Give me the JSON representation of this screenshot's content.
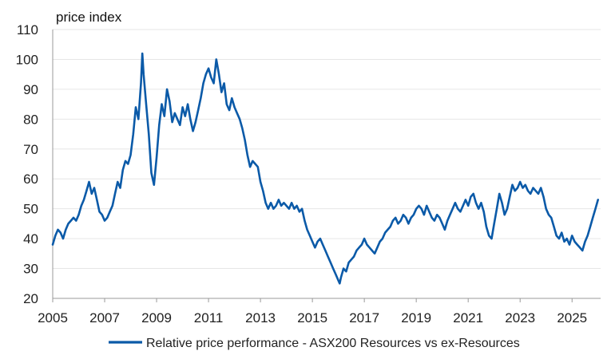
{
  "chart_data": {
    "type": "line",
    "title": "",
    "ylabel": "price index",
    "xlabel": "",
    "ylim": [
      20,
      110
    ],
    "xlim": [
      2005,
      2026.1
    ],
    "y_ticks": [
      20,
      30,
      40,
      50,
      60,
      70,
      80,
      90,
      100,
      110
    ],
    "x_ticks": [
      2005,
      2007,
      2009,
      2011,
      2013,
      2015,
      2017,
      2019,
      2021,
      2023,
      2025
    ],
    "grid": "horizontal",
    "legend_position": "bottom",
    "series": [
      {
        "name": "Relative price performance - ASX200 Resources vs ex-Resources",
        "color": "#0b5aa8",
        "points": [
          [
            2005.0,
            38
          ],
          [
            2005.1,
            41
          ],
          [
            2005.2,
            43
          ],
          [
            2005.3,
            42
          ],
          [
            2005.4,
            40
          ],
          [
            2005.5,
            43
          ],
          [
            2005.6,
            45
          ],
          [
            2005.7,
            46
          ],
          [
            2005.8,
            47
          ],
          [
            2005.9,
            46
          ],
          [
            2006.0,
            48
          ],
          [
            2006.1,
            51
          ],
          [
            2006.2,
            53
          ],
          [
            2006.3,
            56
          ],
          [
            2006.4,
            59
          ],
          [
            2006.5,
            55
          ],
          [
            2006.6,
            57
          ],
          [
            2006.7,
            53
          ],
          [
            2006.8,
            49
          ],
          [
            2006.9,
            48
          ],
          [
            2007.0,
            46
          ],
          [
            2007.1,
            47
          ],
          [
            2007.2,
            49
          ],
          [
            2007.3,
            51
          ],
          [
            2007.4,
            55
          ],
          [
            2007.5,
            59
          ],
          [
            2007.6,
            57
          ],
          [
            2007.7,
            63
          ],
          [
            2007.8,
            66
          ],
          [
            2007.9,
            65
          ],
          [
            2008.0,
            68
          ],
          [
            2008.1,
            75
          ],
          [
            2008.2,
            84
          ],
          [
            2008.3,
            80
          ],
          [
            2008.4,
            92
          ],
          [
            2008.45,
            102
          ],
          [
            2008.5,
            95
          ],
          [
            2008.6,
            85
          ],
          [
            2008.7,
            75
          ],
          [
            2008.8,
            62
          ],
          [
            2008.9,
            58
          ],
          [
            2009.0,
            67
          ],
          [
            2009.1,
            78
          ],
          [
            2009.2,
            85
          ],
          [
            2009.3,
            81
          ],
          [
            2009.4,
            90
          ],
          [
            2009.5,
            86
          ],
          [
            2009.6,
            79
          ],
          [
            2009.7,
            82
          ],
          [
            2009.8,
            80
          ],
          [
            2009.9,
            78
          ],
          [
            2010.0,
            84
          ],
          [
            2010.1,
            81
          ],
          [
            2010.2,
            85
          ],
          [
            2010.3,
            80
          ],
          [
            2010.4,
            76
          ],
          [
            2010.5,
            79
          ],
          [
            2010.6,
            83
          ],
          [
            2010.7,
            87
          ],
          [
            2010.8,
            92
          ],
          [
            2010.9,
            95
          ],
          [
            2011.0,
            97
          ],
          [
            2011.1,
            94
          ],
          [
            2011.2,
            92
          ],
          [
            2011.3,
            100
          ],
          [
            2011.4,
            95
          ],
          [
            2011.5,
            89
          ],
          [
            2011.6,
            92
          ],
          [
            2011.7,
            85
          ],
          [
            2011.8,
            83
          ],
          [
            2011.9,
            87
          ],
          [
            2012.0,
            84
          ],
          [
            2012.1,
            82
          ],
          [
            2012.2,
            80
          ],
          [
            2012.3,
            77
          ],
          [
            2012.4,
            73
          ],
          [
            2012.5,
            68
          ],
          [
            2012.6,
            64
          ],
          [
            2012.7,
            66
          ],
          [
            2012.8,
            65
          ],
          [
            2012.9,
            64
          ],
          [
            2013.0,
            59
          ],
          [
            2013.1,
            56
          ],
          [
            2013.2,
            52
          ],
          [
            2013.3,
            50
          ],
          [
            2013.4,
            52
          ],
          [
            2013.5,
            50
          ],
          [
            2013.6,
            51
          ],
          [
            2013.7,
            53
          ],
          [
            2013.8,
            51
          ],
          [
            2013.9,
            52
          ],
          [
            2014.0,
            51
          ],
          [
            2014.1,
            50
          ],
          [
            2014.2,
            52
          ],
          [
            2014.3,
            50
          ],
          [
            2014.4,
            51
          ],
          [
            2014.5,
            49
          ],
          [
            2014.6,
            50
          ],
          [
            2014.7,
            46
          ],
          [
            2014.8,
            43
          ],
          [
            2014.9,
            41
          ],
          [
            2015.0,
            39
          ],
          [
            2015.1,
            37
          ],
          [
            2015.2,
            39
          ],
          [
            2015.3,
            40
          ],
          [
            2015.4,
            38
          ],
          [
            2015.5,
            36
          ],
          [
            2015.6,
            34
          ],
          [
            2015.7,
            32
          ],
          [
            2015.8,
            30
          ],
          [
            2015.9,
            28
          ],
          [
            2016.0,
            26
          ],
          [
            2016.05,
            25
          ],
          [
            2016.1,
            27
          ],
          [
            2016.2,
            30
          ],
          [
            2016.3,
            29
          ],
          [
            2016.4,
            32
          ],
          [
            2016.5,
            33
          ],
          [
            2016.6,
            34
          ],
          [
            2016.7,
            36
          ],
          [
            2016.8,
            37
          ],
          [
            2016.9,
            38
          ],
          [
            2017.0,
            40
          ],
          [
            2017.1,
            38
          ],
          [
            2017.2,
            37
          ],
          [
            2017.3,
            36
          ],
          [
            2017.4,
            35
          ],
          [
            2017.5,
            37
          ],
          [
            2017.6,
            39
          ],
          [
            2017.7,
            40
          ],
          [
            2017.8,
            42
          ],
          [
            2017.9,
            43
          ],
          [
            2018.0,
            44
          ],
          [
            2018.1,
            46
          ],
          [
            2018.2,
            47
          ],
          [
            2018.3,
            45
          ],
          [
            2018.4,
            46
          ],
          [
            2018.5,
            48
          ],
          [
            2018.6,
            47
          ],
          [
            2018.7,
            45
          ],
          [
            2018.8,
            47
          ],
          [
            2018.9,
            48
          ],
          [
            2019.0,
            50
          ],
          [
            2019.1,
            51
          ],
          [
            2019.2,
            50
          ],
          [
            2019.3,
            48
          ],
          [
            2019.4,
            51
          ],
          [
            2019.5,
            49
          ],
          [
            2019.6,
            47
          ],
          [
            2019.7,
            46
          ],
          [
            2019.8,
            48
          ],
          [
            2019.9,
            47
          ],
          [
            2020.0,
            45
          ],
          [
            2020.1,
            43
          ],
          [
            2020.2,
            46
          ],
          [
            2020.3,
            48
          ],
          [
            2020.4,
            50
          ],
          [
            2020.5,
            52
          ],
          [
            2020.6,
            50
          ],
          [
            2020.7,
            49
          ],
          [
            2020.8,
            51
          ],
          [
            2020.9,
            53
          ],
          [
            2021.0,
            51
          ],
          [
            2021.1,
            54
          ],
          [
            2021.2,
            55
          ],
          [
            2021.3,
            52
          ],
          [
            2021.4,
            50
          ],
          [
            2021.5,
            52
          ],
          [
            2021.6,
            49
          ],
          [
            2021.7,
            44
          ],
          [
            2021.8,
            41
          ],
          [
            2021.9,
            40
          ],
          [
            2022.0,
            45
          ],
          [
            2022.1,
            50
          ],
          [
            2022.2,
            55
          ],
          [
            2022.3,
            52
          ],
          [
            2022.4,
            48
          ],
          [
            2022.5,
            50
          ],
          [
            2022.6,
            54
          ],
          [
            2022.7,
            58
          ],
          [
            2022.8,
            56
          ],
          [
            2022.9,
            57
          ],
          [
            2023.0,
            59
          ],
          [
            2023.1,
            57
          ],
          [
            2023.2,
            58
          ],
          [
            2023.3,
            56
          ],
          [
            2023.4,
            55
          ],
          [
            2023.5,
            57
          ],
          [
            2023.6,
            56
          ],
          [
            2023.7,
            55
          ],
          [
            2023.8,
            57
          ],
          [
            2023.9,
            54
          ],
          [
            2024.0,
            50
          ],
          [
            2024.1,
            48
          ],
          [
            2024.2,
            47
          ],
          [
            2024.3,
            44
          ],
          [
            2024.4,
            41
          ],
          [
            2024.5,
            40
          ],
          [
            2024.6,
            42
          ],
          [
            2024.7,
            39
          ],
          [
            2024.8,
            40
          ],
          [
            2024.9,
            38
          ],
          [
            2025.0,
            41
          ],
          [
            2025.1,
            39
          ],
          [
            2025.2,
            38
          ],
          [
            2025.3,
            37
          ],
          [
            2025.4,
            36
          ],
          [
            2025.5,
            39
          ],
          [
            2025.6,
            41
          ],
          [
            2025.7,
            44
          ],
          [
            2025.8,
            47
          ],
          [
            2025.9,
            50
          ],
          [
            2026.0,
            53
          ]
        ]
      }
    ]
  }
}
